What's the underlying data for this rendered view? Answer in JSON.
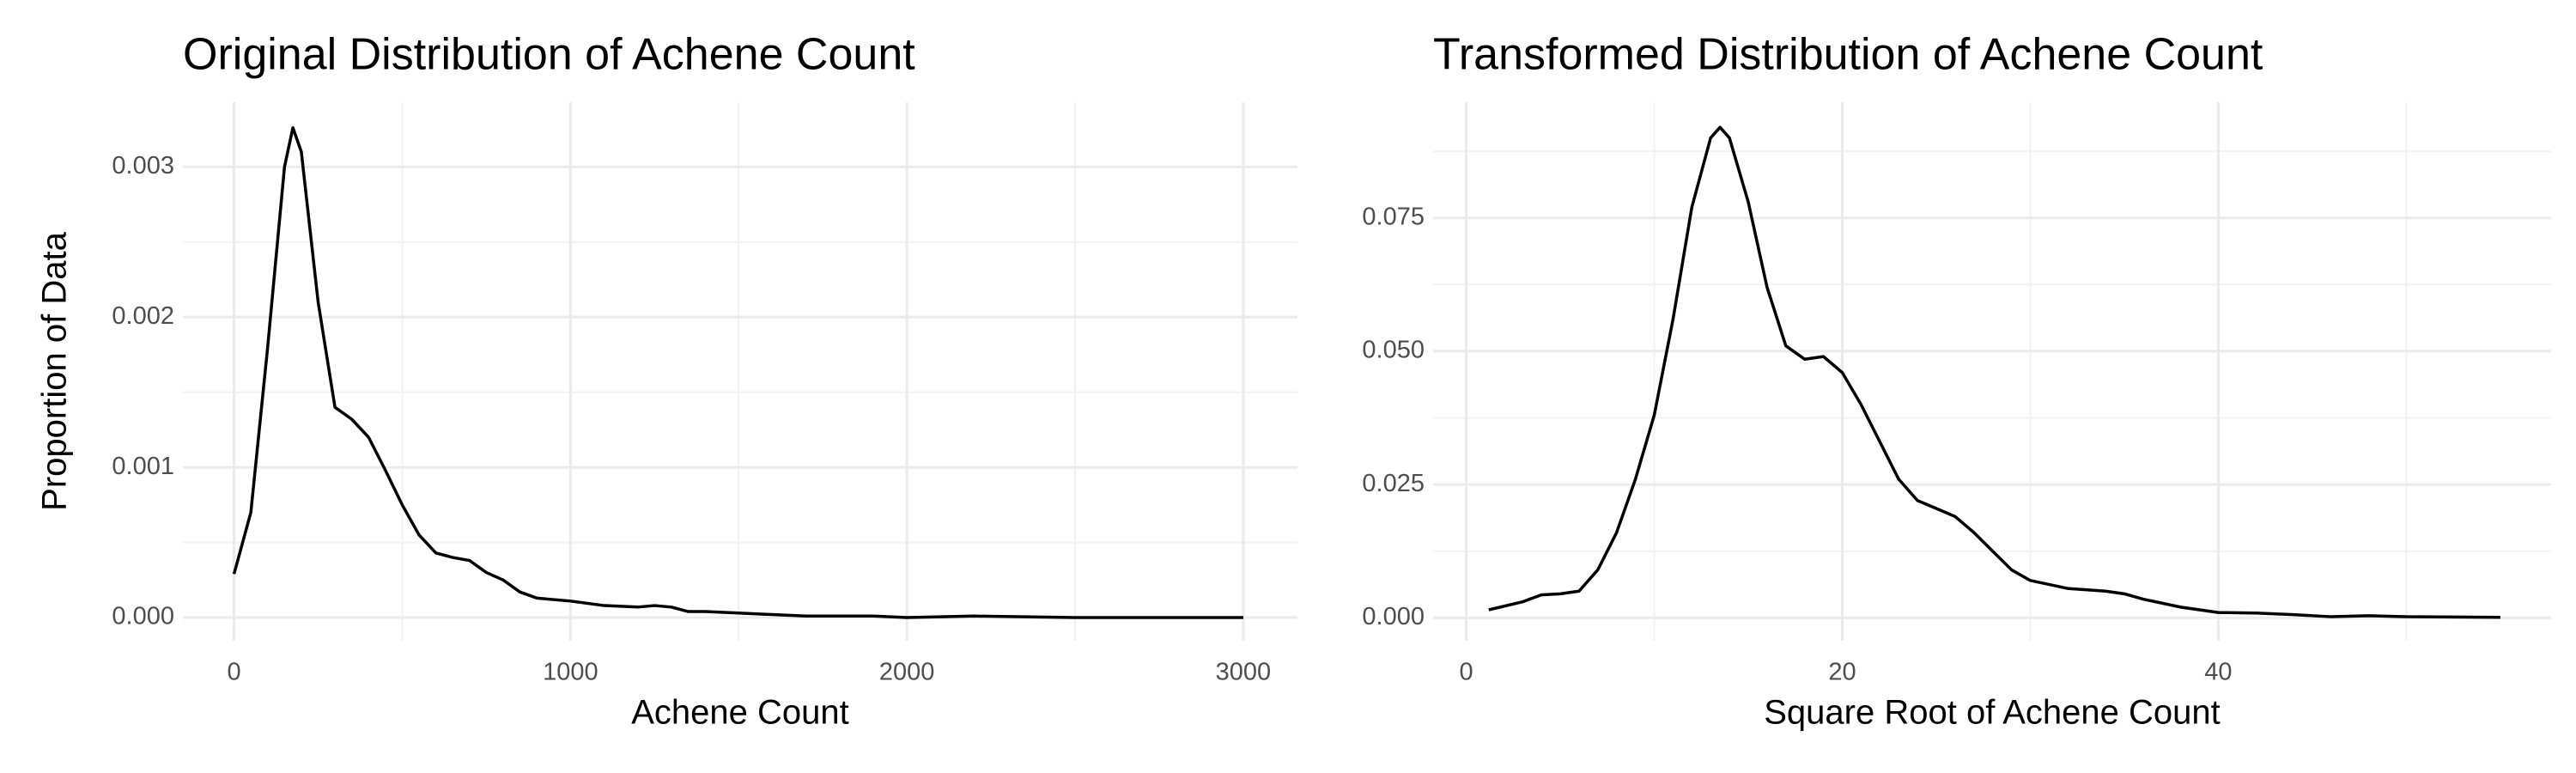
{
  "chart_data": [
    {
      "type": "line",
      "title": "Original Distribution of Achene Count",
      "xlabel": "Achene Count",
      "ylabel": "Proportion of Data",
      "x": [
        0,
        50,
        100,
        150,
        175,
        200,
        250,
        300,
        350,
        400,
        450,
        500,
        550,
        600,
        650,
        700,
        750,
        800,
        850,
        900,
        1000,
        1100,
        1200,
        1250,
        1300,
        1350,
        1400,
        1500,
        1600,
        1700,
        1800,
        1900,
        2000,
        2200,
        2500,
        2700,
        3000
      ],
      "values": [
        0.00029,
        0.0007,
        0.0018,
        0.003,
        0.00326,
        0.0031,
        0.0021,
        0.0014,
        0.00132,
        0.0012,
        0.00098,
        0.00075,
        0.00055,
        0.00043,
        0.0004,
        0.00038,
        0.0003,
        0.00025,
        0.00017,
        0.00013,
        0.00011,
        8e-05,
        7e-05,
        8e-05,
        7e-05,
        4e-05,
        4e-05,
        3e-05,
        2e-05,
        1e-05,
        1e-05,
        1e-05,
        0.0,
        1e-05,
        0.0,
        0.0,
        0.0
      ],
      "color": "#000000",
      "grid": true,
      "xlim": [
        -152,
        3161
      ],
      "ylim": [
        -0.000154,
        0.00343
      ],
      "xticks": [
        0,
        1000,
        2000,
        3000
      ],
      "minor_xticks": [
        500,
        1500,
        2500
      ],
      "yticks": [
        {
          "value": 0,
          "label": "0.000"
        },
        {
          "value": 0.001,
          "label": "0.001"
        },
        {
          "value": 0.002,
          "label": "0.002"
        },
        {
          "value": 0.003,
          "label": "0.003"
        }
      ],
      "minor_yticks": [
        0.0005,
        0.0015,
        0.0025
      ]
    },
    {
      "type": "line",
      "title": "Transformed Distribution of Achene Count",
      "xlabel": "Square Root of Achene Count",
      "x": [
        1.2,
        3,
        4,
        5,
        6,
        7,
        8,
        9,
        10,
        11,
        12,
        13,
        13.5,
        14,
        15,
        16,
        17,
        18,
        19,
        20,
        21,
        22,
        23,
        24,
        25,
        26,
        27,
        28,
        29,
        30,
        32,
        34,
        35,
        36,
        38,
        40,
        42,
        44,
        46,
        48,
        50,
        55
      ],
      "values": [
        0.0015,
        0.003,
        0.0043,
        0.0045,
        0.005,
        0.009,
        0.016,
        0.026,
        0.038,
        0.056,
        0.077,
        0.09,
        0.092,
        0.09,
        0.078,
        0.062,
        0.051,
        0.0485,
        0.049,
        0.046,
        0.04,
        0.033,
        0.026,
        0.022,
        0.0205,
        0.019,
        0.016,
        0.0125,
        0.009,
        0.007,
        0.0055,
        0.005,
        0.0045,
        0.0035,
        0.002,
        0.001,
        0.0009,
        0.0006,
        0.0002,
        0.0004,
        0.0002,
        0.0001
      ],
      "color": "#000000",
      "grid": true,
      "xlim": [
        -1.76,
        57.7
      ],
      "ylim": [
        -0.0043,
        0.0967
      ],
      "xticks": [
        0,
        20,
        40
      ],
      "minor_xticks": [
        10,
        30,
        50
      ],
      "yticks": [
        {
          "value": 0,
          "label": "0.000"
        },
        {
          "value": 0.025,
          "label": "0.025"
        },
        {
          "value": 0.05,
          "label": "0.050"
        },
        {
          "value": 0.075,
          "label": "0.075"
        }
      ],
      "minor_yticks": [
        0.0125,
        0.0375,
        0.0625,
        0.0875
      ]
    }
  ]
}
